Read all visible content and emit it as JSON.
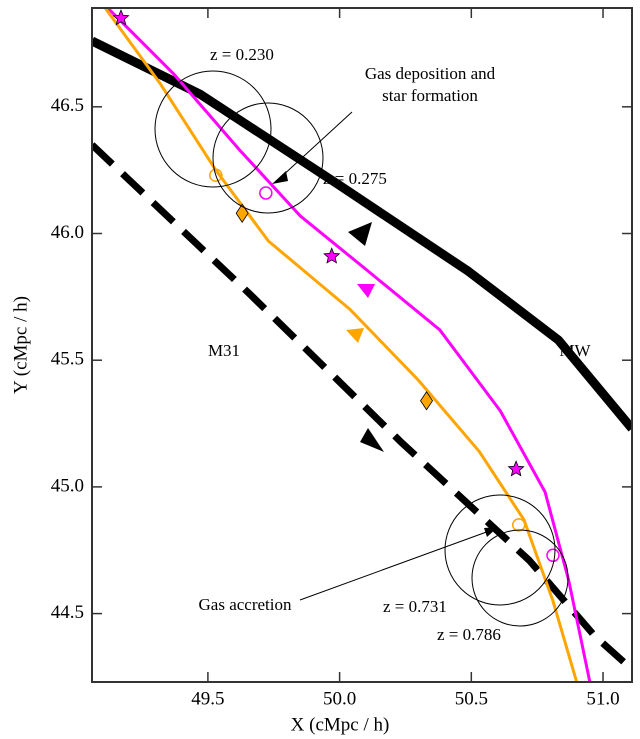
{
  "chart_data": {
    "type": "line",
    "xlabel": "X (cMpc / h)",
    "ylabel": "Y (cMpc / h)",
    "xlim": [
      49.06,
      51.11
    ],
    "ylim": [
      44.23,
      46.89
    ],
    "xticks": [
      49.5,
      {
        "value": 50.0,
        "label": "50.0"
      },
      50.5,
      {
        "value": 51.0,
        "label": "51.0"
      }
    ],
    "yticks": [
      44.5,
      {
        "value": 45.0,
        "label": "45.0"
      },
      45.5,
      {
        "value": 46.0,
        "label": "46.0"
      },
      46.5
    ],
    "series": [
      {
        "name": "MW",
        "color": "#000000",
        "style": "solid",
        "width": 9,
        "x": [
          49.06,
          49.47,
          50.0,
          50.49,
          50.83,
          51.11
        ],
        "y": [
          46.76,
          46.55,
          46.19,
          45.85,
          45.58,
          45.23
        ]
      },
      {
        "name": "M31",
        "color": "#000000",
        "style": "dashed",
        "width": 7,
        "x": [
          49.06,
          49.66,
          50.23,
          50.72,
          50.97,
          51.11
        ],
        "y": [
          46.35,
          45.76,
          45.18,
          44.71,
          44.41,
          44.28
        ]
      },
      {
        "color": "#ff00ff",
        "style": "solid",
        "width": 3,
        "x": [
          49.12,
          49.37,
          49.62,
          49.85,
          50.11,
          50.38,
          50.61,
          50.78,
          50.87,
          50.95
        ],
        "y": [
          46.89,
          46.63,
          46.33,
          46.07,
          45.85,
          45.62,
          45.3,
          44.98,
          44.63,
          44.23
        ]
      },
      {
        "color": "#ffa500",
        "style": "solid",
        "width": 3,
        "x": [
          49.11,
          49.32,
          49.53,
          49.73,
          50.04,
          50.3,
          50.53,
          50.7,
          50.81,
          50.9
        ],
        "y": [
          46.89,
          46.59,
          46.25,
          45.97,
          45.7,
          45.42,
          45.14,
          44.87,
          44.55,
          44.23
        ]
      }
    ],
    "markers": [
      {
        "shape": "star",
        "color": "#ff00ff",
        "x": [
          49.17,
          49.97,
          50.67
        ],
        "y": [
          46.85,
          45.91,
          45.07
        ]
      },
      {
        "shape": "diamond",
        "color": "#ffa500",
        "x": [
          49.63,
          50.33
        ],
        "y": [
          46.08,
          45.34
        ]
      },
      {
        "shape": "circle",
        "color": "#ffa500",
        "x": [
          49.53,
          50.68
        ],
        "y": [
          46.23,
          44.85
        ]
      },
      {
        "shape": "circle",
        "color": "#ff00ff",
        "x": [
          49.72,
          50.81
        ],
        "y": [
          46.16,
          44.73
        ]
      }
    ],
    "annotations": {
      "mw": "MW",
      "m31": "M31",
      "deposition": [
        "Gas deposition and",
        "star formation"
      ],
      "accretion": "Gas accretion",
      "z1": "z = 0.230",
      "z2": "z = 0.275",
      "z3": "z = 0.731",
      "z4": "z = 0.786"
    }
  }
}
